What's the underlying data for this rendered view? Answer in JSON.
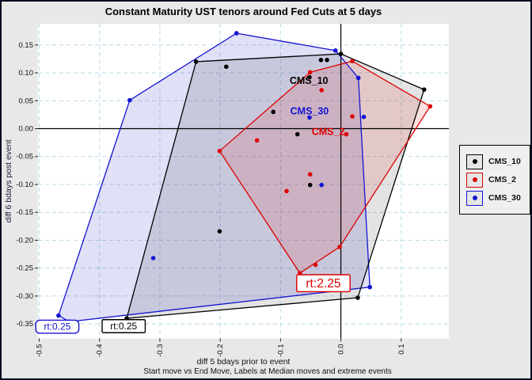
{
  "figure": {
    "title": "Constant Maturity UST tenors around Fed Cuts at 5 days"
  },
  "chart_data": {
    "type": "scatter",
    "title": "Constant Maturity UST tenors around Fed Cuts at 5 days",
    "xlabel": "diff 5 bdays prior to event",
    "xlabel2": "Start move vs End Move, Labels at Median moves and extreme events",
    "ylabel": "diff 6 bdays post event",
    "xlim": [
      -0.502,
      0.179
    ],
    "ylim": [
      -0.376,
      0.188
    ],
    "xticks": [
      -0.5,
      -0.4,
      -0.3,
      -0.2,
      -0.1,
      0.0,
      0.1
    ],
    "xtick_labels": [
      "-0.5",
      "-0.4",
      "-0.3",
      "-0.2",
      "-0.1",
      "0.0",
      "0.1"
    ],
    "yticks": [
      0.15,
      0.1,
      0.05,
      0.0,
      -0.05,
      -0.1,
      -0.15,
      -0.2,
      -0.25,
      -0.3,
      -0.35
    ],
    "ytick_labels": [
      "0.15",
      "0.10",
      "0.05",
      "0.00",
      "-0.05",
      "-0.10",
      "-0.15",
      "-0.20",
      "-0.25",
      "-0.30",
      "-0.35"
    ],
    "grid": true,
    "zero_lines": true,
    "legend_position": "right-outside",
    "series": [
      {
        "name": "CMS_30",
        "color": "#1414d2",
        "fill": "rgba(70,70,210,0.17)",
        "points": [
          [
            -0.35,
            0.051
          ],
          [
            -0.311,
            -0.232
          ],
          [
            -0.173,
            0.171
          ],
          [
            -0.052,
            0.02
          ],
          [
            -0.032,
            -0.101
          ],
          [
            -0.009,
            0.14
          ],
          [
            0.029,
            0.091
          ],
          [
            0.038,
            0.021
          ],
          [
            0.048,
            -0.284
          ],
          [
            -0.468,
            -0.335
          ],
          [
            -0.45,
            -0.346
          ]
        ],
        "hull": [
          [
            -0.173,
            0.171
          ],
          [
            -0.009,
            0.14
          ],
          [
            0.029,
            0.091
          ],
          [
            0.048,
            -0.284
          ],
          [
            -0.45,
            -0.346
          ],
          [
            -0.468,
            -0.335
          ],
          [
            -0.35,
            0.051
          ]
        ]
      },
      {
        "name": "CMS_10",
        "color": "#000000",
        "fill": "rgba(60,60,60,0.14)",
        "points": [
          [
            -0.24,
            0.12
          ],
          [
            -0.19,
            0.111
          ],
          [
            -0.201,
            -0.184
          ],
          [
            -0.112,
            0.03
          ],
          [
            -0.072,
            -0.01
          ],
          [
            -0.052,
            0.092
          ],
          [
            -0.051,
            -0.101
          ],
          [
            -0.033,
            0.123
          ],
          [
            -0.023,
            0.123
          ],
          [
            0.0,
            0.134
          ],
          [
            0.138,
            0.07
          ],
          [
            0.028,
            -0.303
          ],
          [
            -0.355,
            -0.34
          ]
        ],
        "hull": [
          [
            -0.24,
            0.12
          ],
          [
            0.0,
            0.134
          ],
          [
            0.138,
            0.07
          ],
          [
            0.028,
            -0.303
          ],
          [
            -0.355,
            -0.34
          ]
        ]
      },
      {
        "name": "CMS_2",
        "color": "#dd0000",
        "fill": "rgba(230,20,20,0.13)",
        "points": [
          [
            -0.201,
            -0.04
          ],
          [
            -0.139,
            -0.021
          ],
          [
            -0.09,
            -0.112
          ],
          [
            -0.051,
            -0.082
          ],
          [
            -0.051,
            0.101
          ],
          [
            -0.042,
            -0.244
          ],
          [
            -0.032,
            0.069
          ],
          [
            0.019,
            0.121
          ],
          [
            0.019,
            0.022
          ],
          [
            0.009,
            -0.01
          ],
          [
            0.148,
            0.04
          ],
          [
            -0.002,
            -0.212
          ],
          [
            -0.068,
            -0.259
          ]
        ],
        "hull": [
          [
            -0.051,
            0.101
          ],
          [
            0.019,
            0.121
          ],
          [
            0.148,
            0.04
          ],
          [
            -0.002,
            -0.212
          ],
          [
            -0.068,
            -0.259
          ],
          [
            -0.201,
            -0.04
          ]
        ]
      }
    ],
    "annotations": [
      {
        "text": "CMS_10",
        "x": -0.053,
        "y": 0.086,
        "color": "#000000",
        "boxed": false
      },
      {
        "text": "CMS_30",
        "x": -0.052,
        "y": 0.031,
        "color": "#1414d2",
        "boxed": false
      },
      {
        "text": "CMS_2",
        "x": -0.021,
        "y": -0.006,
        "color": "#dd0000",
        "boxed": false
      },
      {
        "text": "rt:0.25",
        "x": -0.47,
        "y": -0.355,
        "color": "#1414d2",
        "boxed": true,
        "rounded": true,
        "scale": 1.0
      },
      {
        "text": "rt:0.25",
        "x": -0.36,
        "y": -0.354,
        "color": "#000000",
        "boxed": true,
        "rounded": false,
        "scale": 1.0
      },
      {
        "text": "rt:2.25",
        "x": -0.029,
        "y": -0.277,
        "color": "#dd0000",
        "boxed": true,
        "rounded": false,
        "scale": 1.3
      }
    ]
  },
  "legend": {
    "items": [
      {
        "label": "CMS_10",
        "color": "#000000"
      },
      {
        "label": "CMS_2",
        "color": "#dd0000"
      },
      {
        "label": "CMS_30",
        "color": "#1414d2"
      }
    ]
  },
  "colors": {
    "figure_bg": "#e8e8e8",
    "plot_bg": "#ffffff",
    "grid": "#b5dbe8",
    "axis_text": "#111111",
    "zero_line": "#000000"
  }
}
